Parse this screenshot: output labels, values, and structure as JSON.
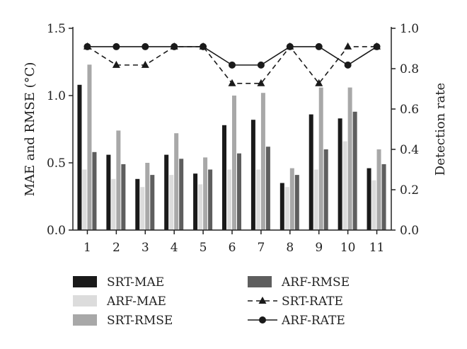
{
  "chart_data": {
    "type": "bar",
    "categories": [
      "1",
      "2",
      "3",
      "4",
      "5",
      "6",
      "7",
      "8",
      "9",
      "10",
      "11"
    ],
    "ylabel": "MAE and RMSE (°C)",
    "ylim": [
      0,
      1.5
    ],
    "yticks": [
      "0.0",
      "0.5",
      "1.0",
      "1.5"
    ],
    "y2label": "Detection rate",
    "y2lim": [
      0,
      1.0
    ],
    "y2ticks": [
      "0.0",
      "0.2",
      "0.4",
      "0.6",
      "0.8",
      "1.0"
    ],
    "legend_position": "bottom",
    "bar_series": [
      {
        "name": "SRT-MAE",
        "color": "#1a1a1a",
        "values": [
          1.08,
          0.56,
          0.38,
          0.56,
          0.42,
          0.78,
          0.82,
          0.35,
          0.86,
          0.83,
          0.46
        ]
      },
      {
        "name": "ARF-MAE",
        "color": "#dcdcdc",
        "values": [
          0.45,
          0.38,
          0.32,
          0.41,
          0.34,
          0.45,
          0.45,
          0.32,
          0.45,
          0.66,
          0.37
        ]
      },
      {
        "name": "SRT-RMSE",
        "color": "#a8a8a8",
        "values": [
          1.23,
          0.74,
          0.5,
          0.72,
          0.54,
          1.0,
          1.02,
          0.46,
          1.06,
          1.06,
          0.6
        ]
      },
      {
        "name": "ARF-RMSE",
        "color": "#5e5e5e",
        "values": [
          0.58,
          0.49,
          0.41,
          0.53,
          0.45,
          0.57,
          0.62,
          0.41,
          0.6,
          0.88,
          0.49
        ]
      }
    ],
    "line_series": [
      {
        "name": "SRT-RATE",
        "marker": "triangle",
        "dash": "dashed",
        "axis": "right",
        "values": [
          0.909,
          0.818,
          0.818,
          0.909,
          0.909,
          0.727,
          0.727,
          0.909,
          0.727,
          0.909,
          0.909
        ]
      },
      {
        "name": "ARF-RATE",
        "marker": "circle",
        "dash": "solid",
        "axis": "right",
        "values": [
          0.909,
          0.909,
          0.909,
          0.909,
          0.909,
          0.818,
          0.818,
          0.909,
          0.909,
          0.818,
          0.909
        ]
      }
    ]
  }
}
